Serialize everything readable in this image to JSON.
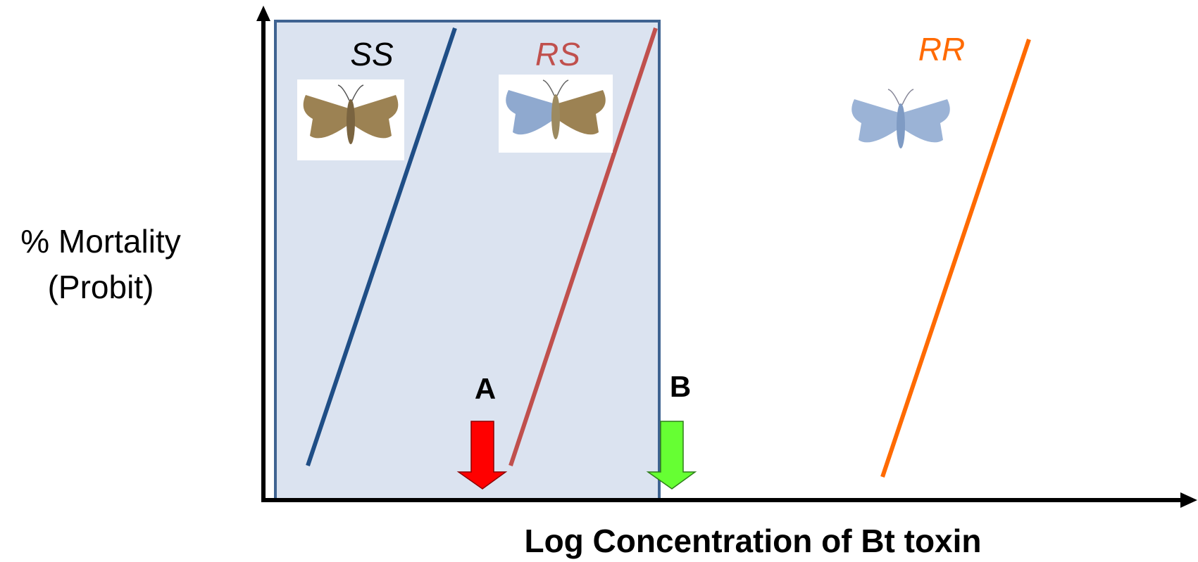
{
  "y_axis_label": [
    "% Mortality",
    "(Probit)"
  ],
  "x_axis_label": "Log Concentration of Bt toxin",
  "genotypes": [
    {
      "label": "SS"
    },
    {
      "label": "RS"
    },
    {
      "label": "RR"
    }
  ],
  "markers": [
    {
      "label": "A"
    },
    {
      "label": "B"
    }
  ]
}
